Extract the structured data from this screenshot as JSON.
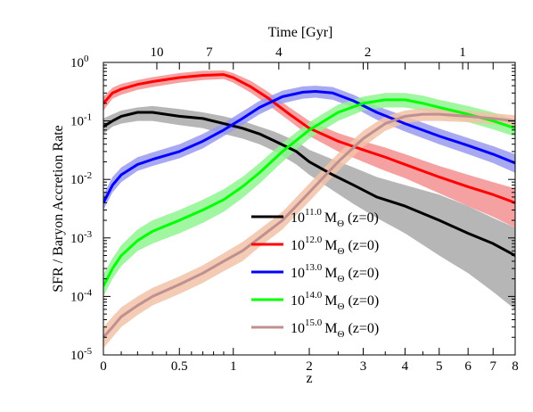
{
  "chart_data": {
    "type": "line",
    "xlabel": "z",
    "ylabel": "SFR / Baryon Accretion Rate",
    "top_axis_label": "Time [Gyr]",
    "x_scale": "log(1+z)",
    "y_scale": "log",
    "xlim": [
      0,
      8
    ],
    "ylim": [
      1e-05,
      1
    ],
    "x_ticks": [
      {
        "value": 0,
        "label": "0"
      },
      {
        "value": 0.5,
        "label": "0.5"
      },
      {
        "value": 1,
        "label": "1"
      },
      {
        "value": 2,
        "label": "2"
      },
      {
        "value": 3,
        "label": "3"
      },
      {
        "value": 4,
        "label": "4"
      },
      {
        "value": 5,
        "label": "5"
      },
      {
        "value": 6,
        "label": "6"
      },
      {
        "value": 7,
        "label": "7"
      },
      {
        "value": 8,
        "label": "8"
      }
    ],
    "y_ticks": [
      {
        "value": 1e-05,
        "base": "10",
        "exp": "-5"
      },
      {
        "value": 0.0001,
        "base": "10",
        "exp": "-4"
      },
      {
        "value": 0.001,
        "base": "10",
        "exp": "-3"
      },
      {
        "value": 0.01,
        "base": "10",
        "exp": "-2"
      },
      {
        "value": 0.1,
        "base": "10",
        "exp": "-1"
      },
      {
        "value": 1,
        "base": "10",
        "exp": "0"
      }
    ],
    "top_ticks": [
      {
        "z": 0.33,
        "label": "10"
      },
      {
        "z": 0.76,
        "label": "7"
      },
      {
        "z": 1.55,
        "label": "4"
      },
      {
        "z": 3.1,
        "label": "2"
      },
      {
        "z": 5.8,
        "label": "1"
      }
    ],
    "legend_placement": "lower-right",
    "grid": false,
    "series": [
      {
        "name_base": "10",
        "name_exp": "11.0",
        "name_unit": "M",
        "name_sub": "Θ",
        "name_tail": " (z=0)",
        "color": "#000000",
        "band_color": "#a9a9a9",
        "z": [
          0,
          0.05,
          0.1,
          0.2,
          0.3,
          0.5,
          0.7,
          0.9,
          1.1,
          1.3,
          1.5,
          1.8,
          2.0,
          2.4,
          2.8,
          3.3,
          4.0,
          5.0,
          6.0,
          7.0,
          8.0
        ],
        "y": [
          0.08,
          0.1,
          0.12,
          0.14,
          0.14,
          0.12,
          0.11,
          0.09,
          0.075,
          0.06,
          0.045,
          0.03,
          0.02,
          0.012,
          0.008,
          0.005,
          0.0035,
          0.002,
          0.0012,
          0.0008,
          0.0005
        ],
        "y_low": [
          0.06,
          0.08,
          0.09,
          0.1,
          0.1,
          0.085,
          0.075,
          0.06,
          0.05,
          0.04,
          0.03,
          0.018,
          0.012,
          0.0065,
          0.0038,
          0.0022,
          0.0012,
          0.0005,
          0.00025,
          0.00012,
          6e-05
        ],
        "y_high": [
          0.11,
          0.13,
          0.15,
          0.17,
          0.18,
          0.16,
          0.14,
          0.12,
          0.1,
          0.08,
          0.065,
          0.045,
          0.032,
          0.022,
          0.016,
          0.011,
          0.008,
          0.0055,
          0.0035,
          0.0022,
          0.0015
        ]
      },
      {
        "name_base": "10",
        "name_exp": "12.0",
        "name_unit": "M",
        "name_sub": "Θ",
        "name_tail": " (z=0)",
        "color": "#ff0000",
        "band_color": "#f59090",
        "z": [
          0,
          0.05,
          0.1,
          0.2,
          0.3,
          0.5,
          0.7,
          0.9,
          1.0,
          1.2,
          1.4,
          1.7,
          2.0,
          2.5,
          3.0,
          3.5,
          4.0,
          5.0,
          6.0,
          7.0,
          8.0
        ],
        "y": [
          0.2,
          0.3,
          0.35,
          0.42,
          0.47,
          0.55,
          0.6,
          0.62,
          0.55,
          0.38,
          0.25,
          0.13,
          0.075,
          0.045,
          0.032,
          0.024,
          0.018,
          0.011,
          0.0075,
          0.0055,
          0.004
        ],
        "y_low": [
          0.15,
          0.24,
          0.28,
          0.34,
          0.38,
          0.45,
          0.5,
          0.52,
          0.45,
          0.3,
          0.19,
          0.1,
          0.055,
          0.03,
          0.02,
          0.014,
          0.0105,
          0.0058,
          0.0035,
          0.0023,
          0.0015
        ],
        "y_high": [
          0.26,
          0.37,
          0.43,
          0.5,
          0.56,
          0.66,
          0.72,
          0.73,
          0.66,
          0.48,
          0.32,
          0.17,
          0.1,
          0.062,
          0.045,
          0.035,
          0.027,
          0.017,
          0.012,
          0.009,
          0.007
        ]
      },
      {
        "name_base": "10",
        "name_exp": "13.0",
        "name_unit": "M",
        "name_sub": "Θ",
        "name_tail": " (z=0)",
        "color": "#0000ff",
        "band_color": "#9a9aee",
        "z": [
          0,
          0.05,
          0.1,
          0.2,
          0.3,
          0.5,
          0.7,
          0.9,
          1.1,
          1.3,
          1.6,
          1.9,
          2.1,
          2.4,
          2.8,
          3.3,
          4.0,
          5.0,
          6.0,
          7.0,
          8.0
        ],
        "y": [
          0.004,
          0.008,
          0.012,
          0.018,
          0.022,
          0.03,
          0.045,
          0.07,
          0.11,
          0.17,
          0.26,
          0.31,
          0.32,
          0.3,
          0.22,
          0.14,
          0.09,
          0.055,
          0.038,
          0.027,
          0.019
        ],
        "y_low": [
          0.003,
          0.006,
          0.009,
          0.014,
          0.017,
          0.023,
          0.034,
          0.055,
          0.085,
          0.13,
          0.2,
          0.24,
          0.25,
          0.23,
          0.17,
          0.105,
          0.066,
          0.04,
          0.027,
          0.019,
          0.013
        ],
        "y_high": [
          0.0055,
          0.011,
          0.016,
          0.024,
          0.029,
          0.04,
          0.06,
          0.092,
          0.145,
          0.22,
          0.33,
          0.39,
          0.4,
          0.38,
          0.28,
          0.18,
          0.12,
          0.074,
          0.051,
          0.037,
          0.027
        ]
      },
      {
        "name_base": "10",
        "name_exp": "14.0",
        "name_unit": "M",
        "name_sub": "Θ",
        "name_tail": " (z=0)",
        "color": "#00ff00",
        "band_color": "#90f590",
        "z": [
          0,
          0.05,
          0.1,
          0.2,
          0.3,
          0.5,
          0.7,
          0.9,
          1.1,
          1.3,
          1.6,
          2.0,
          2.5,
          3.0,
          3.5,
          4.0,
          4.5,
          5.0,
          6.0,
          7.0,
          8.0
        ],
        "y": [
          0.00015,
          0.0003,
          0.0005,
          0.0009,
          0.0013,
          0.002,
          0.003,
          0.0045,
          0.0075,
          0.013,
          0.03,
          0.07,
          0.14,
          0.2,
          0.23,
          0.23,
          0.2,
          0.17,
          0.13,
          0.1,
          0.075
        ],
        "y_low": [
          0.0001,
          0.0002,
          0.00033,
          0.0006,
          0.0008,
          0.0012,
          0.0018,
          0.0028,
          0.0048,
          0.0085,
          0.02,
          0.05,
          0.1,
          0.15,
          0.17,
          0.17,
          0.15,
          0.125,
          0.095,
          0.072,
          0.054
        ],
        "y_high": [
          0.00024,
          0.00045,
          0.00075,
          0.0014,
          0.002,
          0.003,
          0.0045,
          0.0068,
          0.011,
          0.019,
          0.042,
          0.095,
          0.19,
          0.26,
          0.3,
          0.3,
          0.27,
          0.23,
          0.18,
          0.14,
          0.105
        ]
      },
      {
        "name_base": "10",
        "name_exp": "15.0",
        "name_unit": "M",
        "name_sub": "Θ",
        "name_tail": " (z=0)",
        "color": "#c09090",
        "band_color": "#f2c2a8",
        "z": [
          0,
          0.05,
          0.1,
          0.2,
          0.3,
          0.5,
          0.7,
          0.9,
          1.1,
          1.3,
          1.6,
          2.0,
          2.5,
          3.0,
          3.5,
          4.0,
          4.5,
          5.0,
          6.0,
          7.0,
          8.0
        ],
        "y": [
          2e-05,
          3e-05,
          4.5e-05,
          7e-05,
          0.0001,
          0.00016,
          0.00025,
          0.0004,
          0.0006,
          0.001,
          0.002,
          0.006,
          0.02,
          0.05,
          0.09,
          0.12,
          0.13,
          0.13,
          0.12,
          0.11,
          0.1
        ],
        "y_low": [
          1.3e-05,
          2e-05,
          3e-05,
          4.8e-05,
          7e-05,
          0.00011,
          0.00017,
          0.00027,
          0.0004,
          0.0007,
          0.0014,
          0.0042,
          0.014,
          0.036,
          0.068,
          0.092,
          0.1,
          0.1,
          0.095,
          0.088,
          0.08
        ],
        "y_high": [
          3e-05,
          4.5e-05,
          6.5e-05,
          0.0001,
          0.00014,
          0.00022,
          0.00034,
          0.00055,
          0.00085,
          0.0014,
          0.0028,
          0.0085,
          0.028,
          0.068,
          0.12,
          0.15,
          0.165,
          0.165,
          0.15,
          0.135,
          0.125
        ]
      }
    ]
  }
}
